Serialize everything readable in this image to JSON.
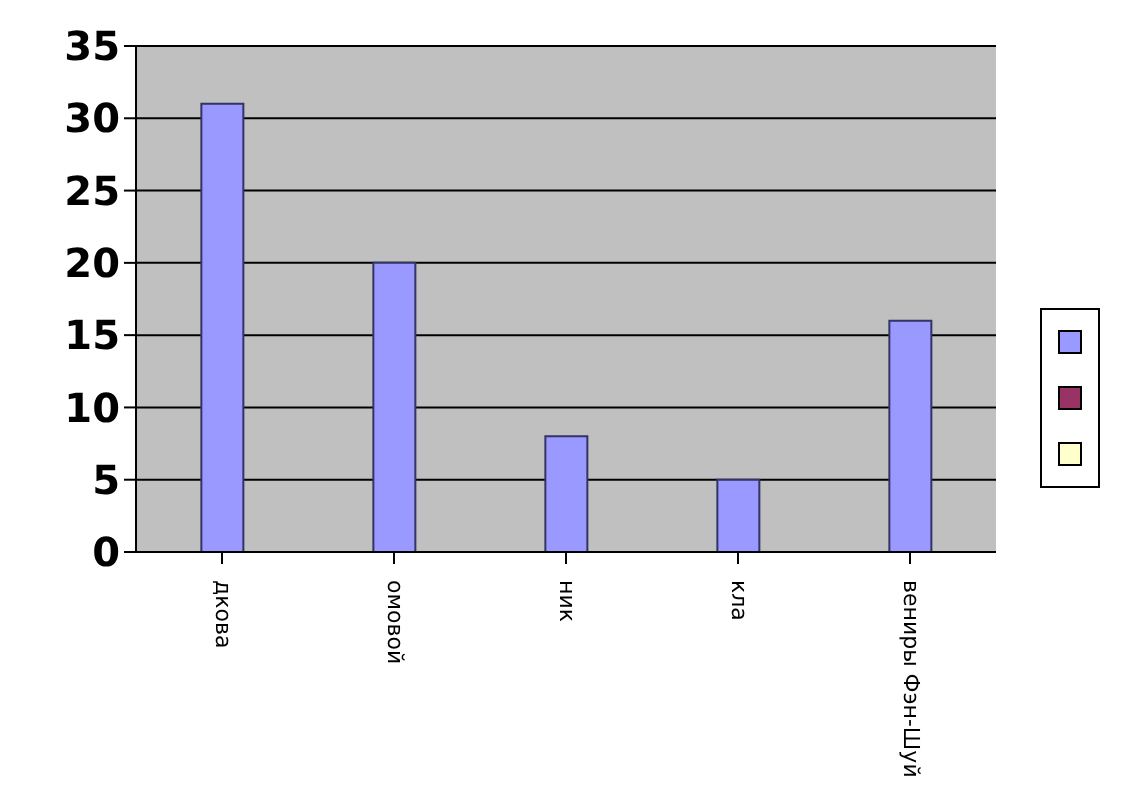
{
  "chart_data": {
    "type": "bar",
    "categories": [
      "дкова",
      "омовой",
      "ник",
      "кла",
      "вениры Фэн-Шуй"
    ],
    "series": [
      {
        "color": "#9999ff",
        "values": [
          31,
          20,
          8,
          5,
          16
        ]
      }
    ],
    "ylim": [
      0,
      35
    ],
    "yticks": [
      0,
      5,
      10,
      15,
      20,
      25,
      30,
      35
    ],
    "grid": "y"
  }
}
